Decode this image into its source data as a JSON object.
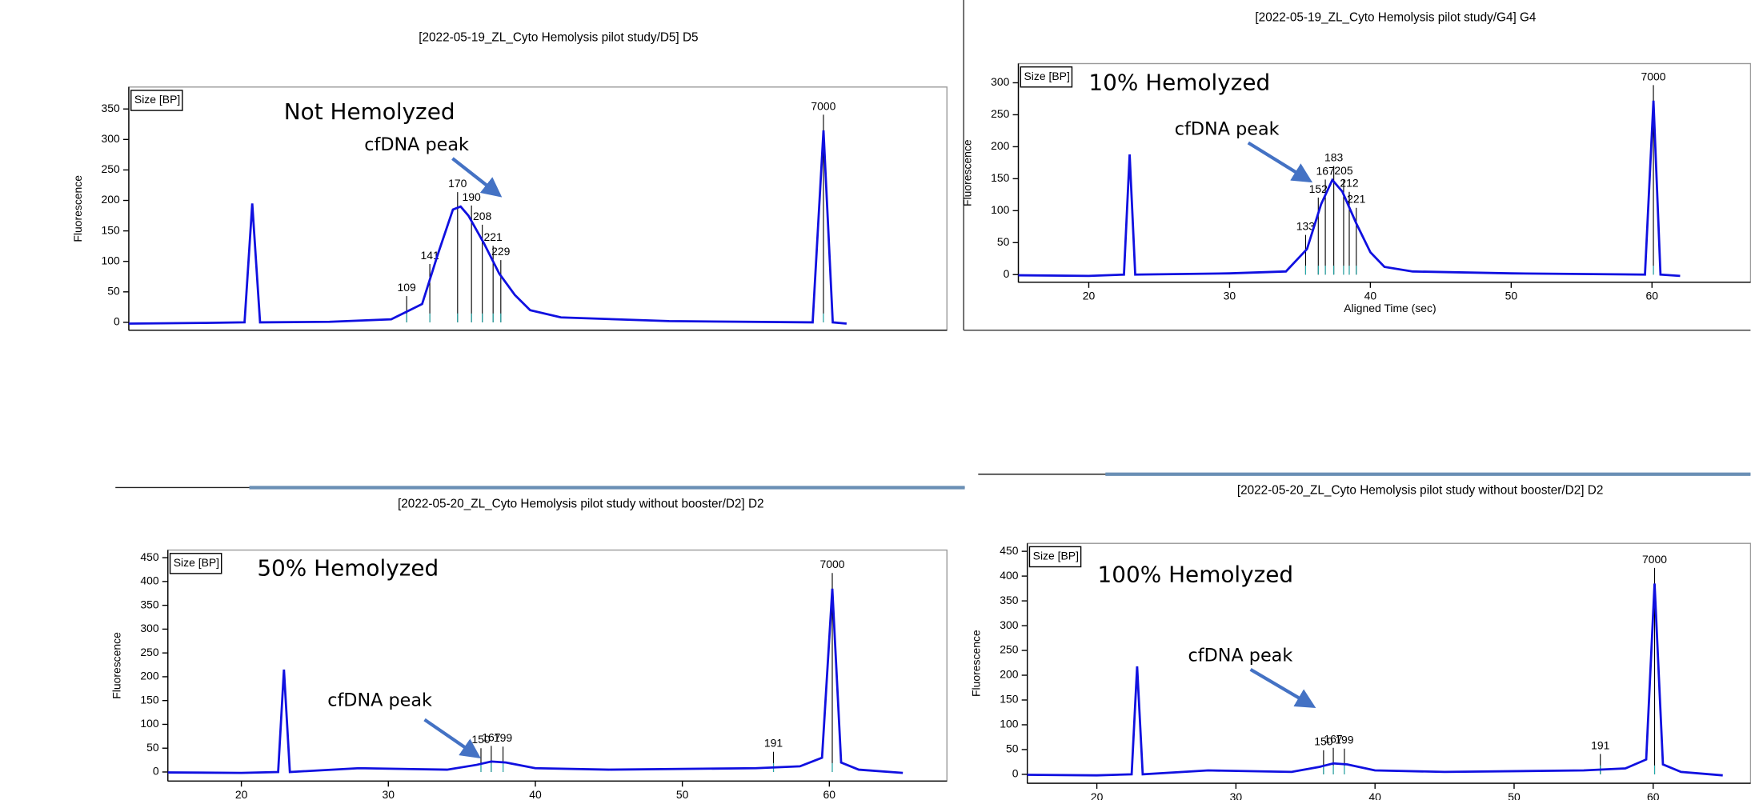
{
  "chart_data": [
    {
      "type": "line",
      "title": "[2022-05-19_ZL_Cyto Hemolysis pilot study/D5] D5",
      "y_label": "Fluorescence",
      "size_label": "Size [BP]",
      "overlay": "Not Hemolyzed",
      "annotation": "cfDNA peak",
      "xlim": [
        15,
        68
      ],
      "ylim": [
        -13,
        386
      ],
      "yticks": [
        0,
        50,
        100,
        150,
        200,
        250,
        300,
        350
      ],
      "series": [
        {
          "color": "#1010e0",
          "x": [
            15,
            20,
            22.5,
            23,
            23.5,
            28,
            32,
            34,
            35,
            36,
            36.5,
            37,
            38,
            39,
            40,
            41,
            43,
            50,
            59.3,
            60,
            60.6,
            61.5
          ],
          "values": [
            -2,
            -1,
            0,
            195,
            0,
            1,
            5,
            30,
            110,
            185,
            190,
            175,
            130,
            80,
            45,
            20,
            8,
            2,
            0,
            315,
            0,
            -2
          ]
        }
      ],
      "peaks": [
        {
          "label": "109",
          "x": 33
        },
        {
          "label": "141",
          "x": 34.5
        },
        {
          "label": "170",
          "x": 36.3
        },
        {
          "label": "190",
          "x": 37.2
        },
        {
          "label": "208",
          "x": 37.9
        },
        {
          "label": "221",
          "x": 38.6
        },
        {
          "label": "229",
          "x": 39.1
        },
        {
          "label": "7000",
          "x": 60
        }
      ]
    },
    {
      "type": "line",
      "title": "[2022-05-19_ZL_Cyto Hemolysis pilot study/G4] G4",
      "y_label": "Fluorescence",
      "x_label": "Aligned Time (sec)",
      "size_label": "Size [BP]",
      "overlay": "10% Hemolyzed",
      "annotation": "cfDNA peak",
      "xlim": [
        15,
        67
      ],
      "ylim": [
        -12,
        330
      ],
      "yticks": [
        0,
        50,
        100,
        150,
        200,
        250,
        300
      ],
      "xticks": [
        20,
        30,
        40,
        50,
        60
      ],
      "series": [
        {
          "color": "#1010e0",
          "x": [
            15,
            20,
            22.5,
            22.9,
            23.3,
            30,
            34,
            35.5,
            36.5,
            37.3,
            38,
            39,
            40,
            41,
            43,
            50,
            59.5,
            60.1,
            60.6,
            62
          ],
          "values": [
            -1,
            -2,
            0,
            188,
            0,
            2,
            5,
            40,
            110,
            148,
            130,
            80,
            35,
            12,
            5,
            2,
            0,
            272,
            0,
            -2
          ]
        }
      ],
      "peaks": [
        {
          "label": "133",
          "x": 35.4
        },
        {
          "label": "152",
          "x": 36.3
        },
        {
          "label": "167",
          "x": 36.8
        },
        {
          "label": "183",
          "x": 37.4
        },
        {
          "label": "205",
          "x": 38.1
        },
        {
          "label": "212",
          "x": 38.5
        },
        {
          "label": "221",
          "x": 39
        },
        {
          "label": "7000",
          "x": 60.1
        }
      ]
    },
    {
      "type": "line",
      "title": "[2022-05-20_ZL_Cyto Hemolysis pilot study without booster/D2] D2",
      "y_label": "Fluorescence",
      "size_label": "Size [BP]",
      "overlay": "50% Hemolyzed",
      "annotation": "cfDNA peak",
      "xlim": [
        15,
        68
      ],
      "ylim": [
        -19,
        466
      ],
      "yticks": [
        0,
        50,
        100,
        150,
        200,
        250,
        300,
        350,
        400,
        450
      ],
      "xticks": [
        20,
        30,
        40,
        50,
        60
      ],
      "series": [
        {
          "color": "#1010e0",
          "x": [
            15,
            20,
            22.5,
            22.9,
            23.3,
            28,
            34,
            36,
            37,
            38,
            40,
            45,
            55,
            58,
            59.5,
            60.2,
            60.8,
            62,
            65
          ],
          "values": [
            -1,
            -2,
            0,
            215,
            0,
            8,
            5,
            15,
            22,
            20,
            8,
            5,
            8,
            12,
            30,
            385,
            20,
            5,
            -2
          ]
        }
      ],
      "peaks": [
        {
          "label": "150",
          "x": 36.3
        },
        {
          "label": "167",
          "x": 37
        },
        {
          "label": "199",
          "x": 37.8
        },
        {
          "label": "191",
          "x": 56.2
        },
        {
          "label": "7000",
          "x": 60.2
        }
      ]
    },
    {
      "type": "line",
      "title": "[2022-05-20_ZL_Cyto Hemolysis pilot study without booster/D2] D2",
      "y_label": "Fluorescence",
      "size_label": "Size [BP]",
      "overlay": "100% Hemolyzed",
      "annotation": "cfDNA peak",
      "xlim": [
        15,
        67
      ],
      "ylim": [
        -18,
        466
      ],
      "yticks": [
        0,
        50,
        100,
        150,
        200,
        250,
        300,
        350,
        400,
        450
      ],
      "xticks": [
        20,
        30,
        40,
        50,
        60
      ],
      "series": [
        {
          "color": "#1010e0",
          "x": [
            15,
            20,
            22.5,
            22.9,
            23.3,
            28,
            34,
            36,
            37,
            38,
            40,
            45,
            55,
            58,
            59.5,
            60.1,
            60.7,
            62,
            65
          ],
          "values": [
            -1,
            -2,
            0,
            218,
            0,
            8,
            5,
            15,
            22,
            20,
            8,
            5,
            8,
            12,
            30,
            385,
            20,
            5,
            -2
          ]
        }
      ],
      "peaks": [
        {
          "label": "150",
          "x": 36.3
        },
        {
          "label": "167",
          "x": 37
        },
        {
          "label": "199",
          "x": 37.8
        },
        {
          "label": "191",
          "x": 56.2
        },
        {
          "label": "7000",
          "x": 60.1
        }
      ]
    }
  ]
}
